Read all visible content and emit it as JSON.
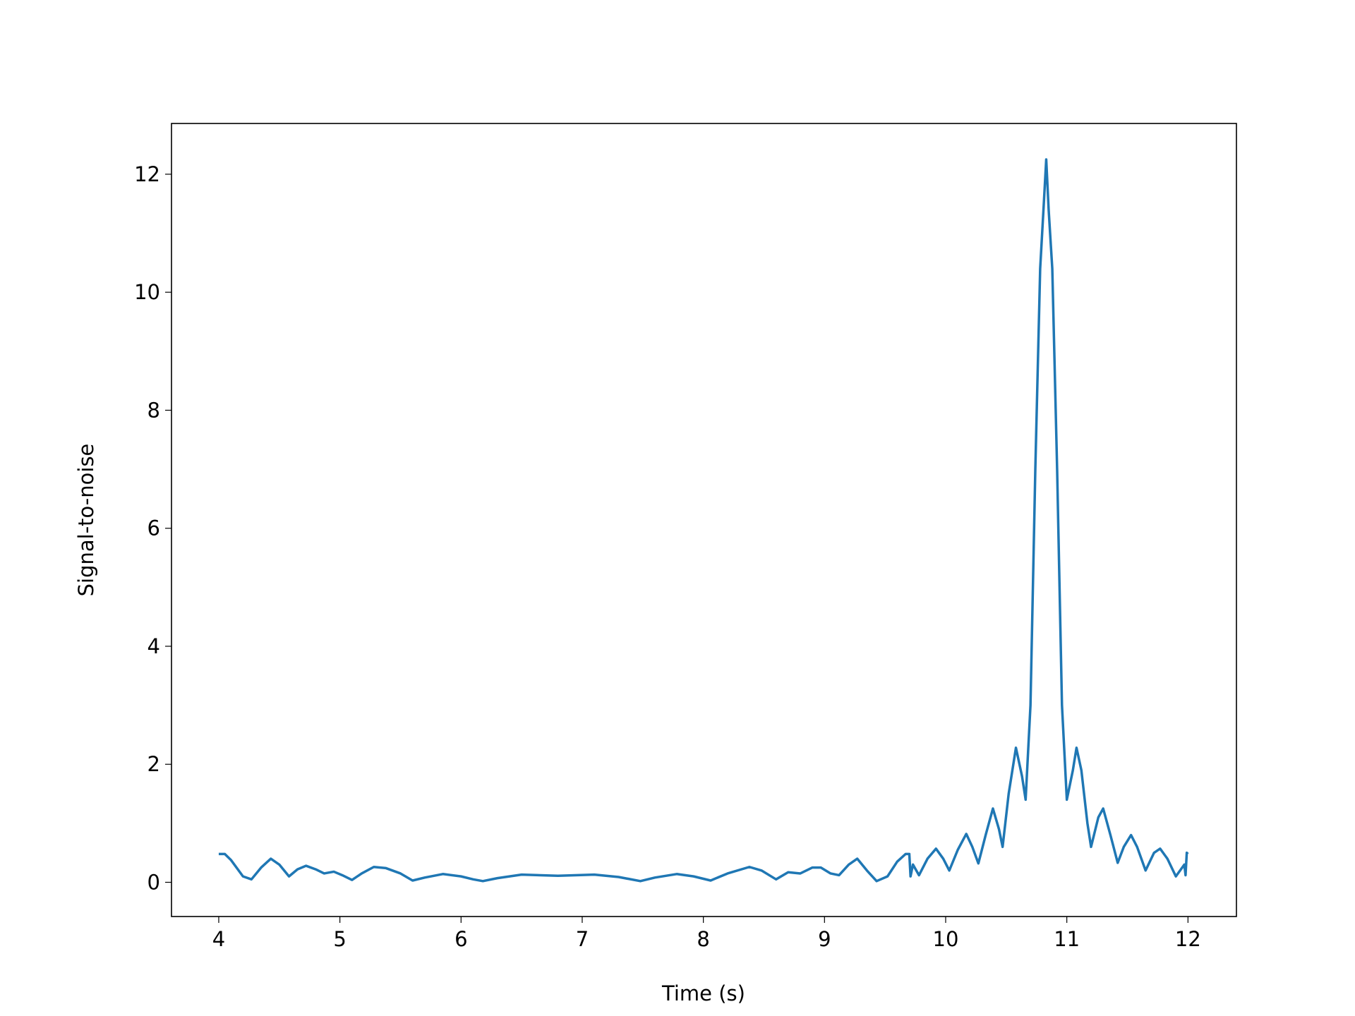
{
  "chart_data": {
    "type": "line",
    "xlabel": "Time (s)",
    "ylabel": "Signal-to-noise",
    "xlim": [
      3.61,
      12.4
    ],
    "ylim": [
      -0.58,
      12.86
    ],
    "xticks": [
      4,
      5,
      6,
      7,
      8,
      9,
      10,
      11,
      12
    ],
    "yticks": [
      0,
      2,
      4,
      6,
      8,
      10,
      12
    ],
    "x": [
      4.0,
      4.05,
      4.1,
      4.2,
      4.27,
      4.35,
      4.43,
      4.5,
      4.58,
      4.65,
      4.72,
      4.8,
      4.87,
      4.95,
      5.02,
      5.1,
      5.18,
      5.28,
      5.38,
      5.5,
      5.6,
      5.7,
      5.85,
      6.0,
      6.1,
      6.18,
      6.3,
      6.5,
      6.8,
      7.1,
      7.3,
      7.48,
      7.6,
      7.78,
      7.92,
      8.06,
      8.2,
      8.38,
      8.48,
      8.6,
      8.7,
      8.8,
      8.9,
      8.97,
      9.05,
      9.12,
      9.2,
      9.27,
      9.35,
      9.43,
      9.52,
      9.6,
      9.67,
      9.7,
      9.71,
      9.73,
      9.78,
      9.85,
      9.92,
      9.98,
      10.03,
      10.1,
      10.17,
      10.22,
      10.27,
      10.33,
      10.39,
      10.44,
      10.47,
      10.52,
      10.58,
      10.63,
      10.66,
      10.7,
      10.74,
      10.78,
      10.81,
      10.83,
      10.85,
      10.88,
      10.92,
      10.96,
      11.0,
      11.05,
      11.08,
      11.12,
      11.17,
      11.2,
      11.26,
      11.3,
      11.36,
      11.42,
      11.47,
      11.53,
      11.58,
      11.65,
      11.72,
      11.77,
      11.83,
      11.9,
      11.97,
      11.98,
      11.99,
      12.0
    ],
    "series": [
      {
        "color": "#1f77b4",
        "values": [
          0.48,
          0.48,
          0.38,
          0.1,
          0.05,
          0.25,
          0.4,
          0.3,
          0.1,
          0.22,
          0.28,
          0.22,
          0.15,
          0.18,
          0.12,
          0.04,
          0.15,
          0.26,
          0.24,
          0.15,
          0.03,
          0.08,
          0.14,
          0.1,
          0.05,
          0.02,
          0.07,
          0.13,
          0.11,
          0.13,
          0.09,
          0.02,
          0.08,
          0.14,
          0.1,
          0.03,
          0.15,
          0.26,
          0.2,
          0.05,
          0.17,
          0.15,
          0.25,
          0.25,
          0.15,
          0.12,
          0.3,
          0.4,
          0.2,
          0.02,
          0.1,
          0.35,
          0.48,
          0.48,
          0.1,
          0.3,
          0.12,
          0.4,
          0.57,
          0.4,
          0.2,
          0.55,
          0.82,
          0.6,
          0.32,
          0.8,
          1.25,
          0.9,
          0.6,
          1.5,
          2.28,
          1.8,
          1.4,
          3.0,
          7.0,
          10.4,
          11.5,
          12.25,
          11.4,
          10.4,
          7.0,
          3.0,
          1.4,
          1.9,
          2.28,
          1.9,
          1.0,
          0.6,
          1.1,
          1.25,
          0.8,
          0.33,
          0.6,
          0.8,
          0.6,
          0.2,
          0.5,
          0.57,
          0.4,
          0.1,
          0.3,
          0.12,
          0.5,
          0.48
        ]
      }
    ]
  }
}
